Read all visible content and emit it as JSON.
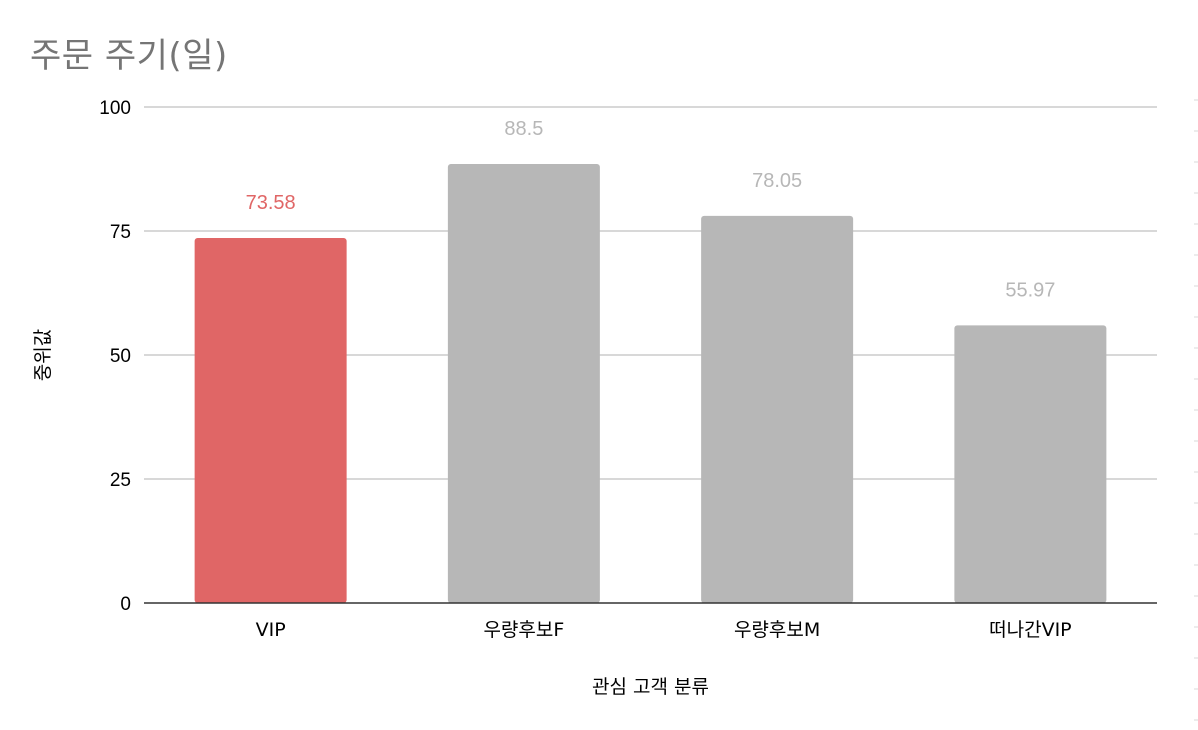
{
  "chart_data": {
    "type": "bar",
    "title": "주문 주기(일)",
    "xlabel": "관심 고객 분류",
    "ylabel": "중위값",
    "categories": [
      "VIP",
      "우량후보F",
      "우량후보M",
      "떠나간VIP"
    ],
    "values": [
      73.58,
      88.5,
      78.05,
      55.97
    ],
    "data_labels": [
      "73.58",
      "88.5",
      "78.05",
      "55.97"
    ],
    "ylim": [
      0,
      100
    ],
    "yticks": [
      0,
      25,
      50,
      75,
      100
    ],
    "grid": true,
    "legend": "none",
    "bar_colors": [
      "#e06666",
      "#b7b7b7",
      "#b7b7b7",
      "#b7b7b7"
    ],
    "label_colors": [
      "#e06666",
      "#b7b7b7",
      "#b7b7b7",
      "#b7b7b7"
    ],
    "gridline_color": "#cccccc",
    "axis_color": "#333333",
    "title_color": "#757575"
  }
}
